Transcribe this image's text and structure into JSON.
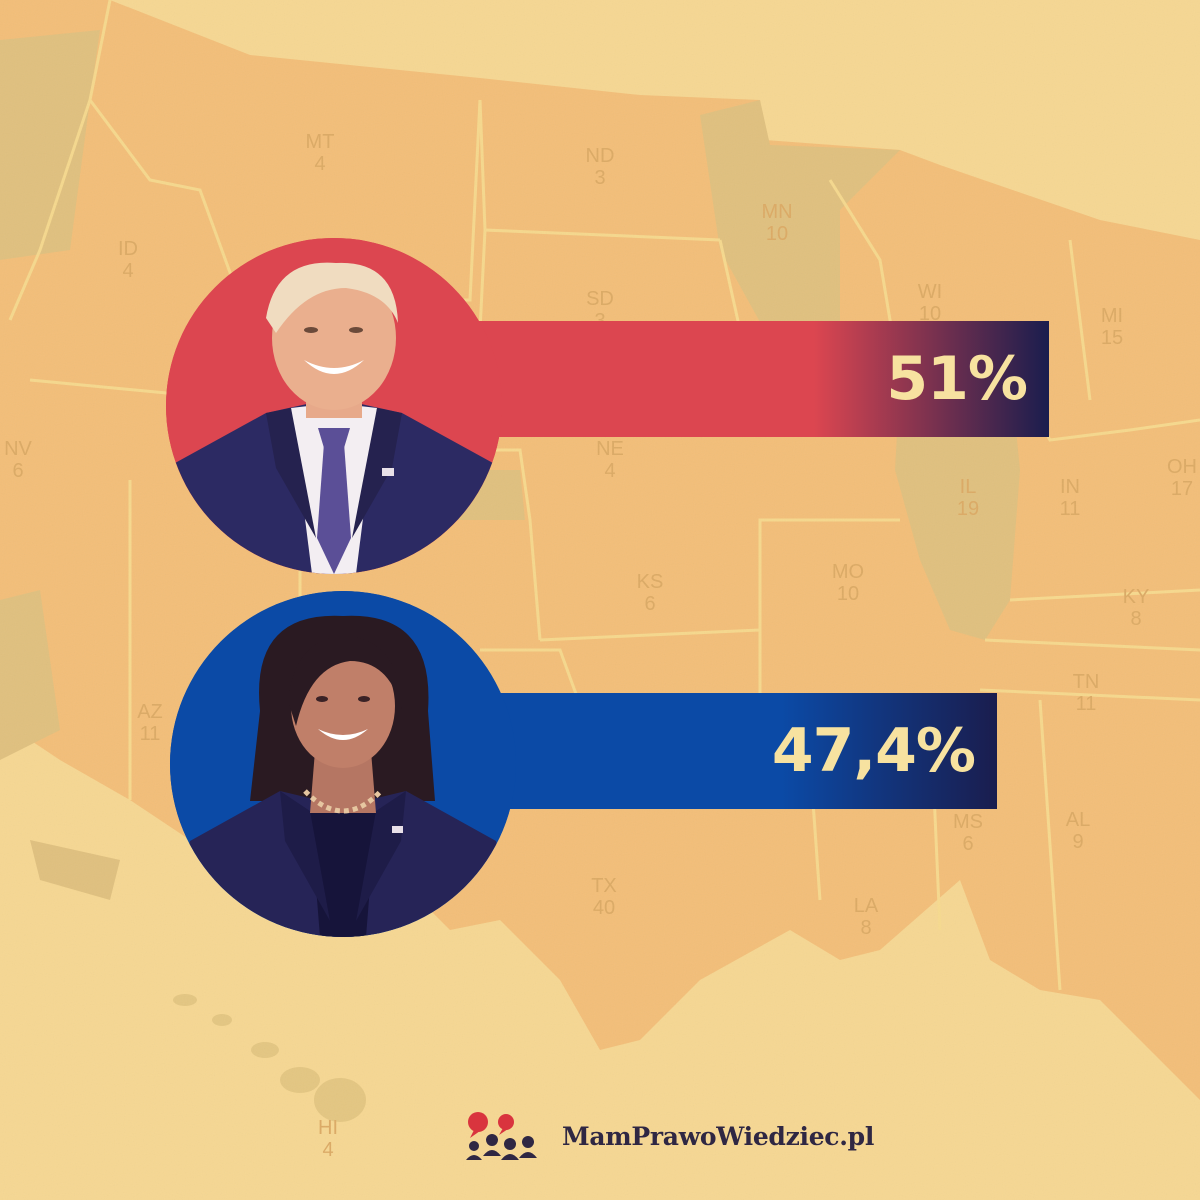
{
  "chart_data": {
    "type": "bar",
    "orientation": "horizontal",
    "categories": [
      "",
      ""
    ],
    "values": [
      51,
      47.4
    ],
    "labels": [
      "51%",
      "47,4%"
    ],
    "colors": [
      "#dc4650",
      "#0b4aa6"
    ]
  },
  "map_labels": [
    {
      "code": "MT",
      "num": "4"
    },
    {
      "code": "ND",
      "num": "3"
    },
    {
      "code": "MN",
      "num": "10"
    },
    {
      "code": "ID",
      "num": "4"
    },
    {
      "code": "SD",
      "num": "3"
    },
    {
      "code": "WI",
      "num": "10"
    },
    {
      "code": "MI",
      "num": "15"
    },
    {
      "code": "NV",
      "num": "6"
    },
    {
      "code": "NE",
      "num": "4"
    },
    {
      "code": "IL",
      "num": "19"
    },
    {
      "code": "IN",
      "num": "11"
    },
    {
      "code": "OH",
      "num": "17"
    },
    {
      "code": "KS",
      "num": "6"
    },
    {
      "code": "MO",
      "num": "10"
    },
    {
      "code": "KY",
      "num": "8"
    },
    {
      "code": "TN",
      "num": "11"
    },
    {
      "code": "AZ",
      "num": "11"
    },
    {
      "code": "MS",
      "num": "6"
    },
    {
      "code": "AL",
      "num": "9"
    },
    {
      "code": "TX",
      "num": "40"
    },
    {
      "code": "LA",
      "num": "8"
    },
    {
      "code": "HI",
      "num": "4"
    }
  ],
  "brand": {
    "name": "MamPrawoWiedziec.pl",
    "logo_icon": "people-speech-bubbles-icon"
  },
  "portraits": [
    {
      "name": "red-candidate-portrait",
      "bg": "#dc4650"
    },
    {
      "name": "blue-candidate-portrait",
      "bg": "#0b4aa6"
    }
  ]
}
